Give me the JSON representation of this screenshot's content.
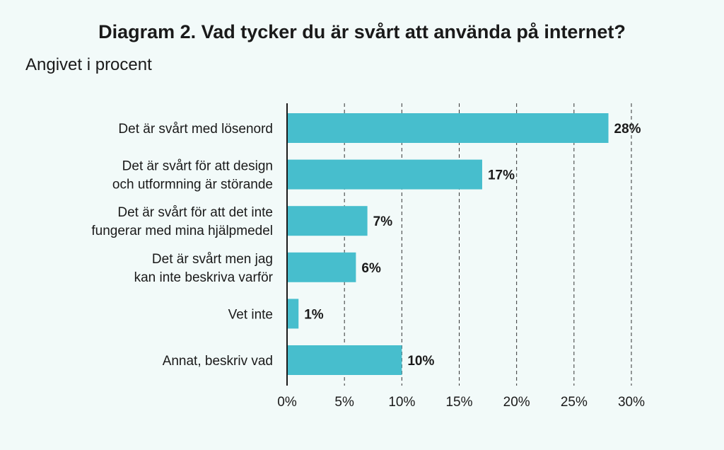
{
  "chart_data": {
    "type": "bar",
    "orientation": "horizontal",
    "title": "Diagram 2. Vad tycker du är svårt att använda på internet?",
    "subtitle": "Angivet i procent",
    "categories": [
      [
        "Det är svårt med lösenord"
      ],
      [
        "Det är svårt för att design",
        "och utformning är störande"
      ],
      [
        "Det är svårt för att det inte",
        "fungerar med mina hjälpmedel"
      ],
      [
        "Det är svårt men jag",
        "kan inte beskriva varför"
      ],
      [
        "Vet inte"
      ],
      [
        "Annat, beskriv vad"
      ]
    ],
    "values": [
      28,
      17,
      7,
      6,
      1,
      10
    ],
    "value_labels": [
      "28%",
      "17%",
      "7%",
      "6%",
      "1%",
      "10%"
    ],
    "xlim": [
      0,
      30
    ],
    "ticks": [
      0,
      5,
      10,
      15,
      20,
      25,
      30
    ],
    "tick_labels": [
      "0%",
      "5%",
      "10%",
      "15%",
      "20%",
      "25%",
      "30%"
    ],
    "grid": "vertical dashed",
    "bar_color": "#47becd"
  }
}
